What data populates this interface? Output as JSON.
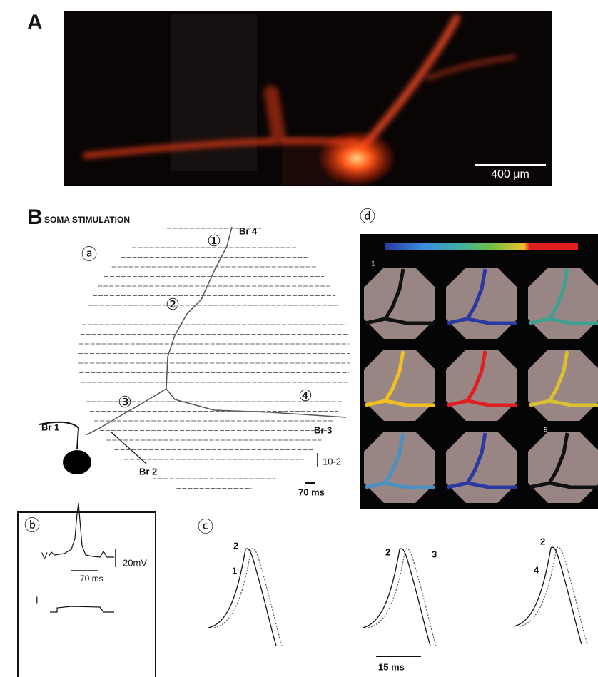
{
  "panel_a": {
    "label": "A",
    "scale_bar": "400 μm"
  },
  "panel_b": {
    "label": "B",
    "title": "SOMA STIMULATION",
    "sub_a": {
      "label": "ⓐ",
      "sites": [
        "①",
        "②",
        "③",
        "④"
      ],
      "branches": [
        "Br 4",
        "Br 1",
        "Br 2",
        "Br 3"
      ],
      "scale_y": "10-2",
      "scale_x": "70 ms"
    },
    "sub_d": {
      "label": "ⓓ",
      "frame_first": "1",
      "frame_last": "9"
    },
    "sub_b": {
      "label": "ⓑ",
      "voltage": "V",
      "scale_y": "20mV",
      "scale_x": "70 ms",
      "current": "I"
    },
    "sub_c": {
      "label": "ⓒ",
      "pairs": [
        [
          "2",
          "1"
        ],
        [
          "2",
          "3"
        ],
        [
          "2",
          "4"
        ]
      ],
      "scale_x": "15 ms"
    }
  }
}
